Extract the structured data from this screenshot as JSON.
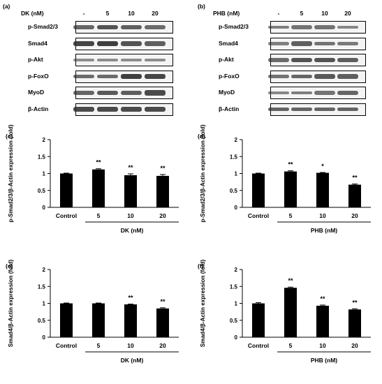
{
  "western": [
    {
      "letter": "(a)",
      "treatment": "DK (nM)",
      "lanes": [
        "-",
        "5",
        "10",
        "20"
      ],
      "proteins": [
        "p-Smad2/3",
        "Smad4",
        "p-Akt",
        "p-FoxO",
        "MyoD",
        "β-Actin"
      ],
      "intensity": [
        [
          0.55,
          0.7,
          0.6,
          0.5
        ],
        [
          0.8,
          0.85,
          0.7,
          0.6
        ],
        [
          0.25,
          0.25,
          0.25,
          0.25
        ],
        [
          0.5,
          0.5,
          0.85,
          0.8
        ],
        [
          0.55,
          0.65,
          0.6,
          0.75
        ],
        [
          0.75,
          0.75,
          0.75,
          0.75
        ]
      ]
    },
    {
      "letter": "(b)",
      "treatment": "PHB (nM)",
      "lanes": [
        "-",
        "5",
        "10",
        "20"
      ],
      "proteins": [
        "p-Smad2/3",
        "Smad4",
        "p-Akt",
        "p-FoxO",
        "MyoD",
        "β-Actin"
      ],
      "intensity": [
        [
          0.35,
          0.45,
          0.45,
          0.3
        ],
        [
          0.35,
          0.6,
          0.45,
          0.4
        ],
        [
          0.5,
          0.7,
          0.7,
          0.6
        ],
        [
          0.45,
          0.55,
          0.65,
          0.6
        ],
        [
          0.3,
          0.35,
          0.45,
          0.55
        ],
        [
          0.55,
          0.55,
          0.55,
          0.55
        ]
      ]
    }
  ],
  "chart_data": [
    {
      "letter": "(c)",
      "type": "bar",
      "ylabel": "p-Smad2/3/β-Actin expression (fold)",
      "xgroup": "DK (nM)",
      "categories": [
        "Control",
        "5",
        "10",
        "20"
      ],
      "values": [
        1.0,
        1.12,
        0.95,
        0.93
      ],
      "errors": [
        0.01,
        0.02,
        0.04,
        0.04
      ],
      "significance": [
        "",
        "**",
        "**",
        "**"
      ],
      "ylim": [
        0,
        2
      ],
      "yticks": [
        "0",
        "0.5",
        "1",
        "1.5",
        "2"
      ]
    },
    {
      "letter": "(d)",
      "type": "bar",
      "ylabel": "p-Smad2/3/β-Actin expression (fold)",
      "xgroup": "PHB (nM)",
      "categories": [
        "Control",
        "5",
        "10",
        "20"
      ],
      "values": [
        1.0,
        1.06,
        1.02,
        0.67
      ],
      "errors": [
        0.01,
        0.02,
        0.01,
        0.02
      ],
      "significance": [
        "",
        "**",
        "*",
        "**"
      ],
      "ylim": [
        0,
        2
      ],
      "yticks": [
        "0",
        "0.5",
        "1",
        "1.5",
        "2"
      ]
    },
    {
      "letter": "(e)",
      "type": "bar",
      "ylabel": "Smad4/β-Actin expression (fold)",
      "xgroup": "DK (nM)",
      "categories": [
        "Control",
        "5",
        "10",
        "20"
      ],
      "values": [
        1.0,
        1.0,
        0.97,
        0.85
      ],
      "errors": [
        0.01,
        0.01,
        0.01,
        0.02
      ],
      "significance": [
        "",
        "",
        "**",
        "**"
      ],
      "ylim": [
        0,
        2
      ],
      "yticks": [
        "0",
        "0.5",
        "1",
        "1.5",
        "2"
      ]
    },
    {
      "letter": "(f)",
      "type": "bar",
      "ylabel": "Smad4/β-Actin expression (fold)",
      "xgroup": "PHB (nM)",
      "categories": [
        "Control",
        "5",
        "10",
        "20"
      ],
      "values": [
        1.0,
        1.46,
        0.93,
        0.82
      ],
      "errors": [
        0.02,
        0.02,
        0.02,
        0.02
      ],
      "significance": [
        "",
        "**",
        "**",
        "**"
      ],
      "ylim": [
        0,
        2
      ],
      "yticks": [
        "0",
        "0.5",
        "1",
        "1.5",
        "2"
      ]
    }
  ]
}
